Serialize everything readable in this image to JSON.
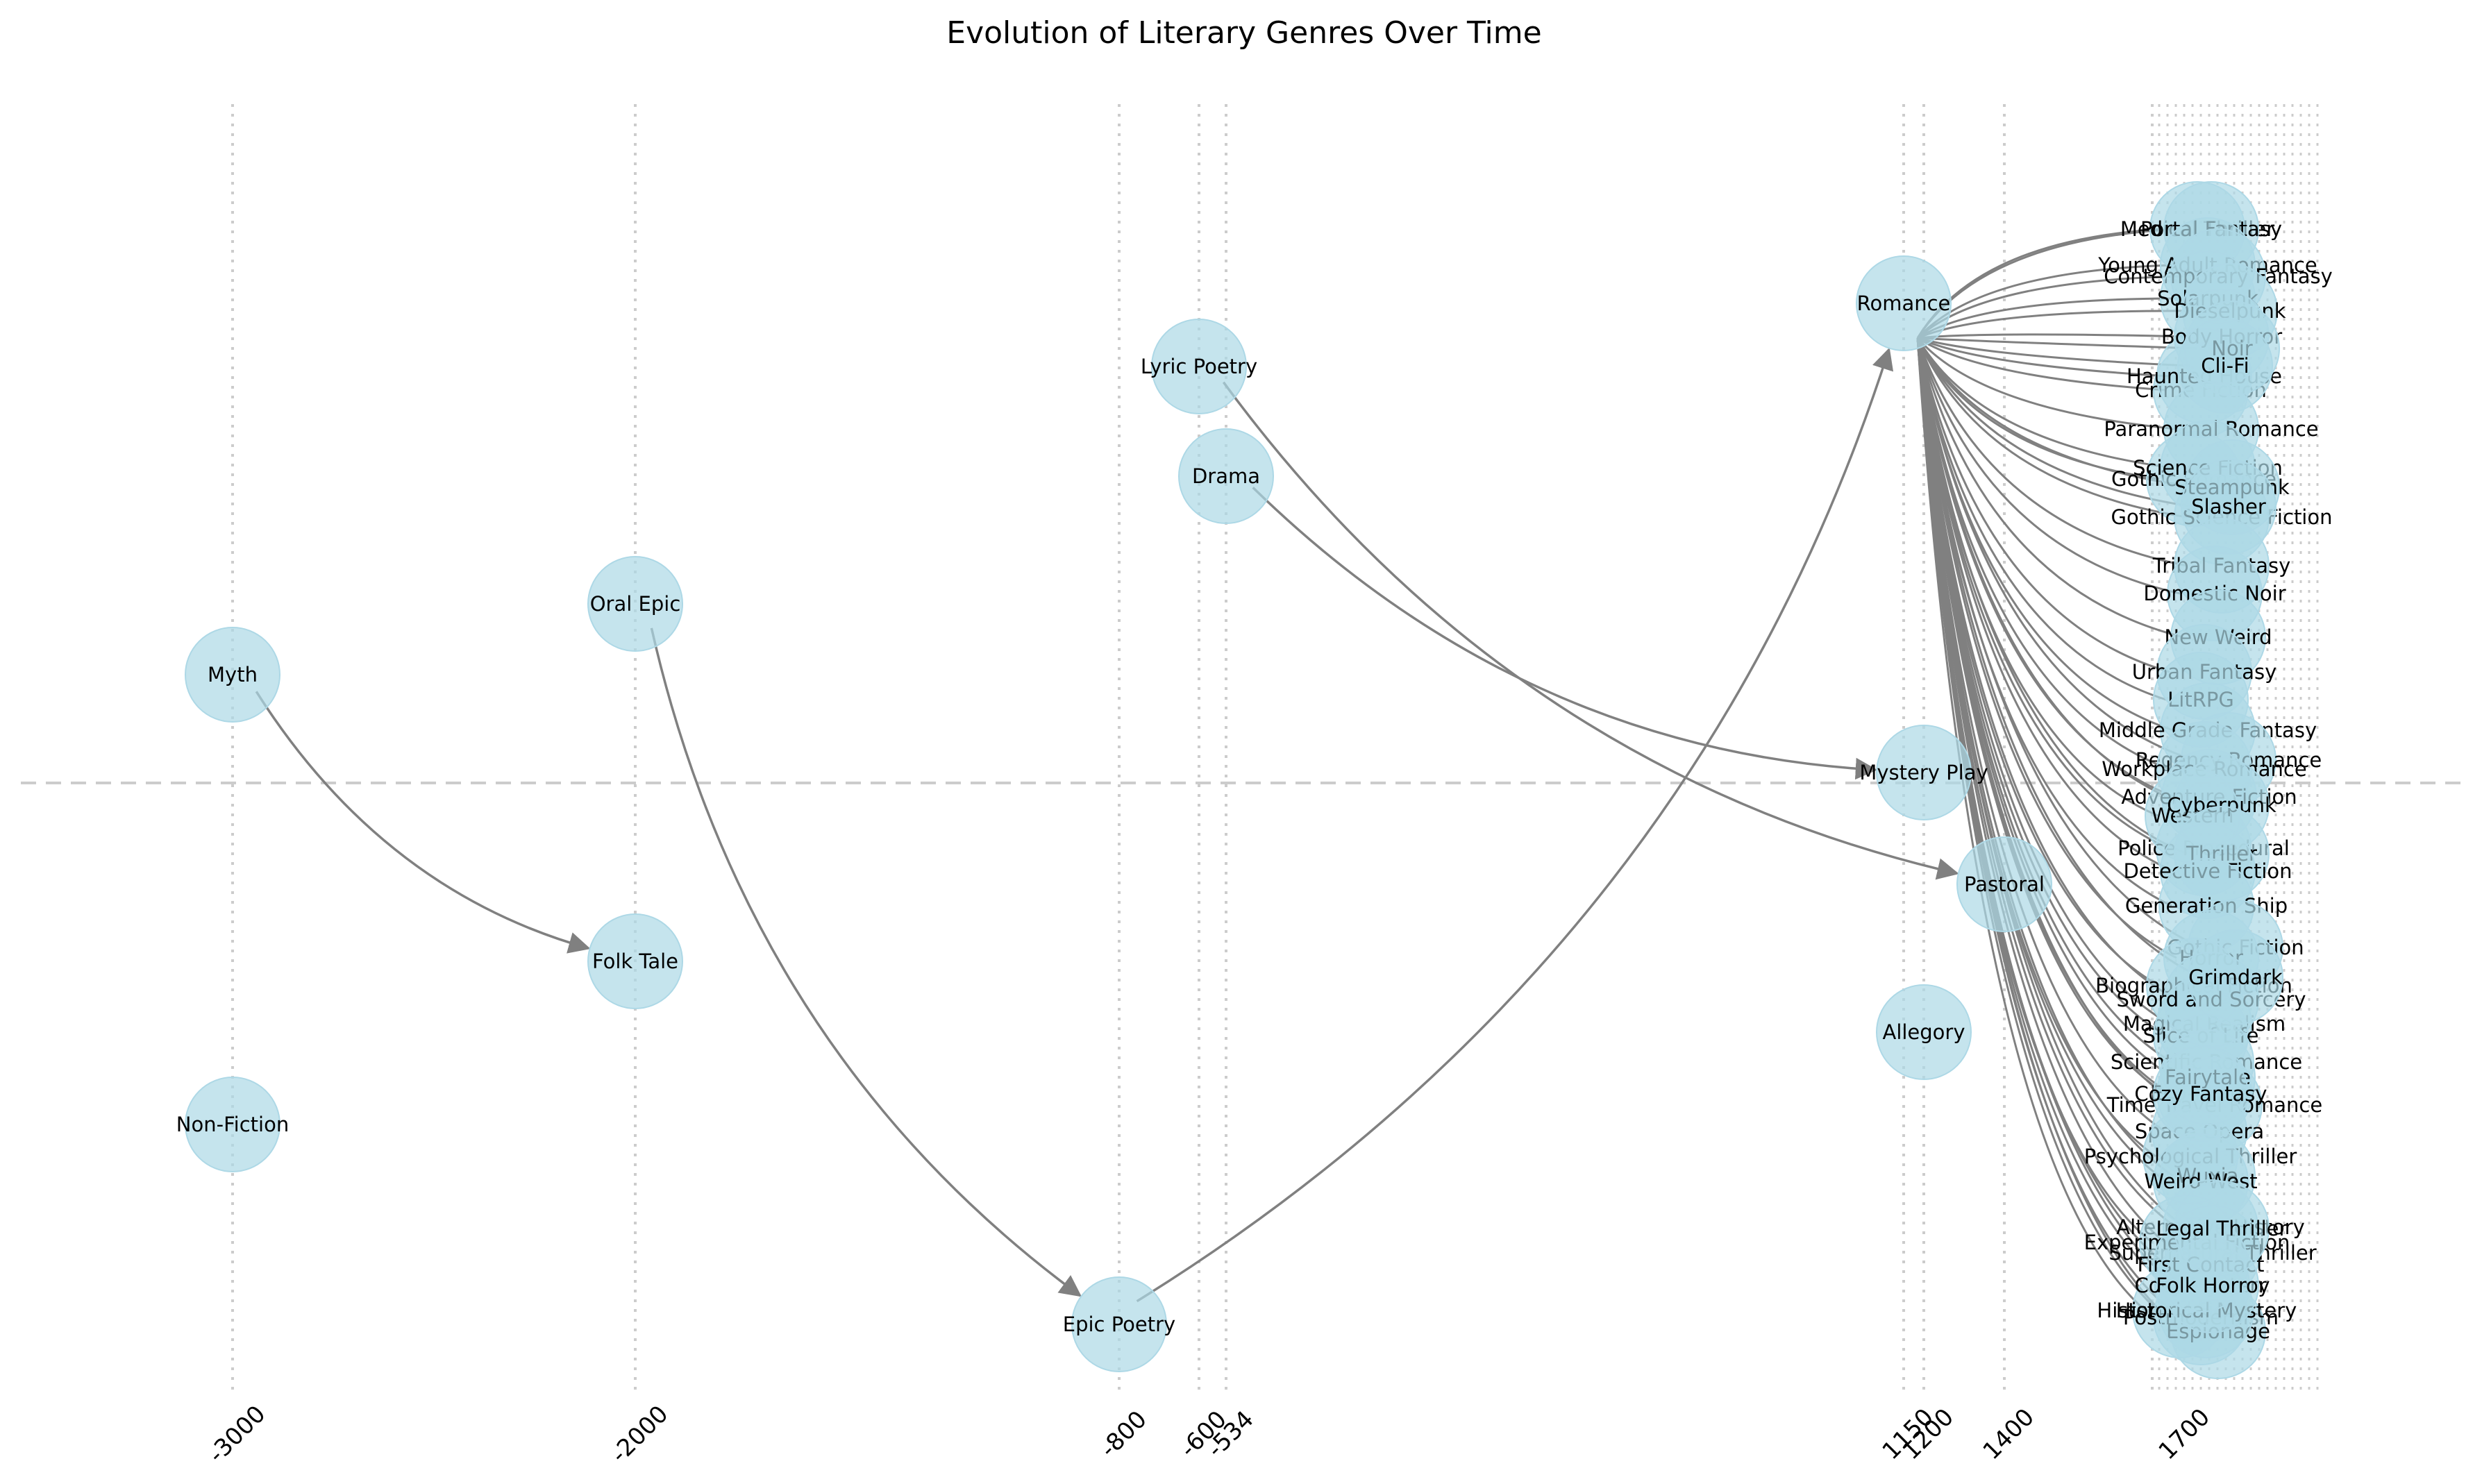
{
  "title": "Evolution of Literary Genres Over Time",
  "node_color": "#add8e6",
  "edge_color": "#808080",
  "grid_color": "#cccccc",
  "nodes": [
    {
      "label": "Myth",
      "year": -3000
    },
    {
      "label": "Non-Fiction",
      "year": -3000
    },
    {
      "label": "Oral Epic",
      "year": -2000
    },
    {
      "label": "Folk Tale",
      "year": -2000
    },
    {
      "label": "Epic Poetry",
      "year": -800
    },
    {
      "label": "Lyric Poetry",
      "year": -600
    },
    {
      "label": "Drama",
      "year": -534
    },
    {
      "label": "Romance",
      "year": 1150
    },
    {
      "label": "Mystery Play",
      "year": 1200
    },
    {
      "label": "Allegory",
      "year": 1200
    },
    {
      "label": "Pastoral",
      "year": 1400
    },
    {
      "label": "Historical Fiction"
    },
    {
      "label": "Gothic Romance"
    },
    {
      "label": "Gothic Science Fiction"
    },
    {
      "label": "Crime Fiction"
    },
    {
      "label": "Haunted House"
    },
    {
      "label": "Paranormal Romance"
    },
    {
      "label": "Science Fiction"
    },
    {
      "label": "Steampunk"
    },
    {
      "label": "Slasher"
    },
    {
      "label": "Tribal Fantasy"
    },
    {
      "label": "Domestic Noir"
    },
    {
      "label": "New Weird"
    },
    {
      "label": "Urban Fantasy"
    },
    {
      "label": "LitRPG"
    },
    {
      "label": "Middle Grade Fantasy"
    },
    {
      "label": "Regency Romance"
    },
    {
      "label": "Workplace Romance"
    },
    {
      "label": "Adventure Fiction"
    },
    {
      "label": "Police Procedural"
    },
    {
      "label": "Western"
    },
    {
      "label": "Cyberpunk"
    },
    {
      "label": "Thriller"
    },
    {
      "label": "Detective Fiction"
    },
    {
      "label": "Generation Ship"
    },
    {
      "label": "Gothic Fiction"
    },
    {
      "label": "Horror"
    },
    {
      "label": "Biographical Fiction"
    },
    {
      "label": "Magical Realism"
    },
    {
      "label": "Slice of Life"
    },
    {
      "label": "Scientific Romance"
    },
    {
      "label": "Eco-Horror"
    },
    {
      "label": "Time Travel Romance"
    },
    {
      "label": "Space Opera"
    },
    {
      "label": "Psychological Thriller"
    },
    {
      "label": "Wuxia"
    },
    {
      "label": "Weird West"
    },
    {
      "label": "Alternative History"
    },
    {
      "label": "Supernatural Thriller"
    },
    {
      "label": "Cosy Mystery"
    },
    {
      "label": "Postmodernism"
    },
    {
      "label": "Espionage"
    },
    {
      "label": "Experimental Fiction"
    },
    {
      "label": "Historical Mystery"
    },
    {
      "label": "First Contact"
    },
    {
      "label": "Medical Thriller"
    },
    {
      "label": "Portal Fantasy"
    },
    {
      "label": "Young Adult Romance"
    },
    {
      "label": "Contemporary Fantasy"
    },
    {
      "label": "Solarpunk"
    },
    {
      "label": "Dieselpunk"
    },
    {
      "label": "Body Horror"
    },
    {
      "label": "Noir"
    },
    {
      "label": "Cli-Fi"
    },
    {
      "label": "Sword and Sorcery"
    },
    {
      "label": "Grimdark"
    },
    {
      "label": "Fairytale"
    },
    {
      "label": "Cozy Fantasy"
    },
    {
      "label": "Legal Thriller"
    },
    {
      "label": "Folk Horror"
    }
  ],
  "edges": [
    {
      "from": "Myth",
      "to": "Folk Tale"
    },
    {
      "from": "Oral Epic",
      "to": "Epic Poetry"
    },
    {
      "from": "Epic Poetry",
      "to": "Romance"
    },
    {
      "from": "Drama",
      "to": "Mystery Play"
    },
    {
      "from": "Lyric Poetry",
      "to": "Pastoral"
    }
  ],
  "axis_ticks": [
    "-3000",
    "-2000",
    "-800",
    "-600",
    "-534",
    "1150",
    "1200",
    "1400",
    "1700"
  ]
}
